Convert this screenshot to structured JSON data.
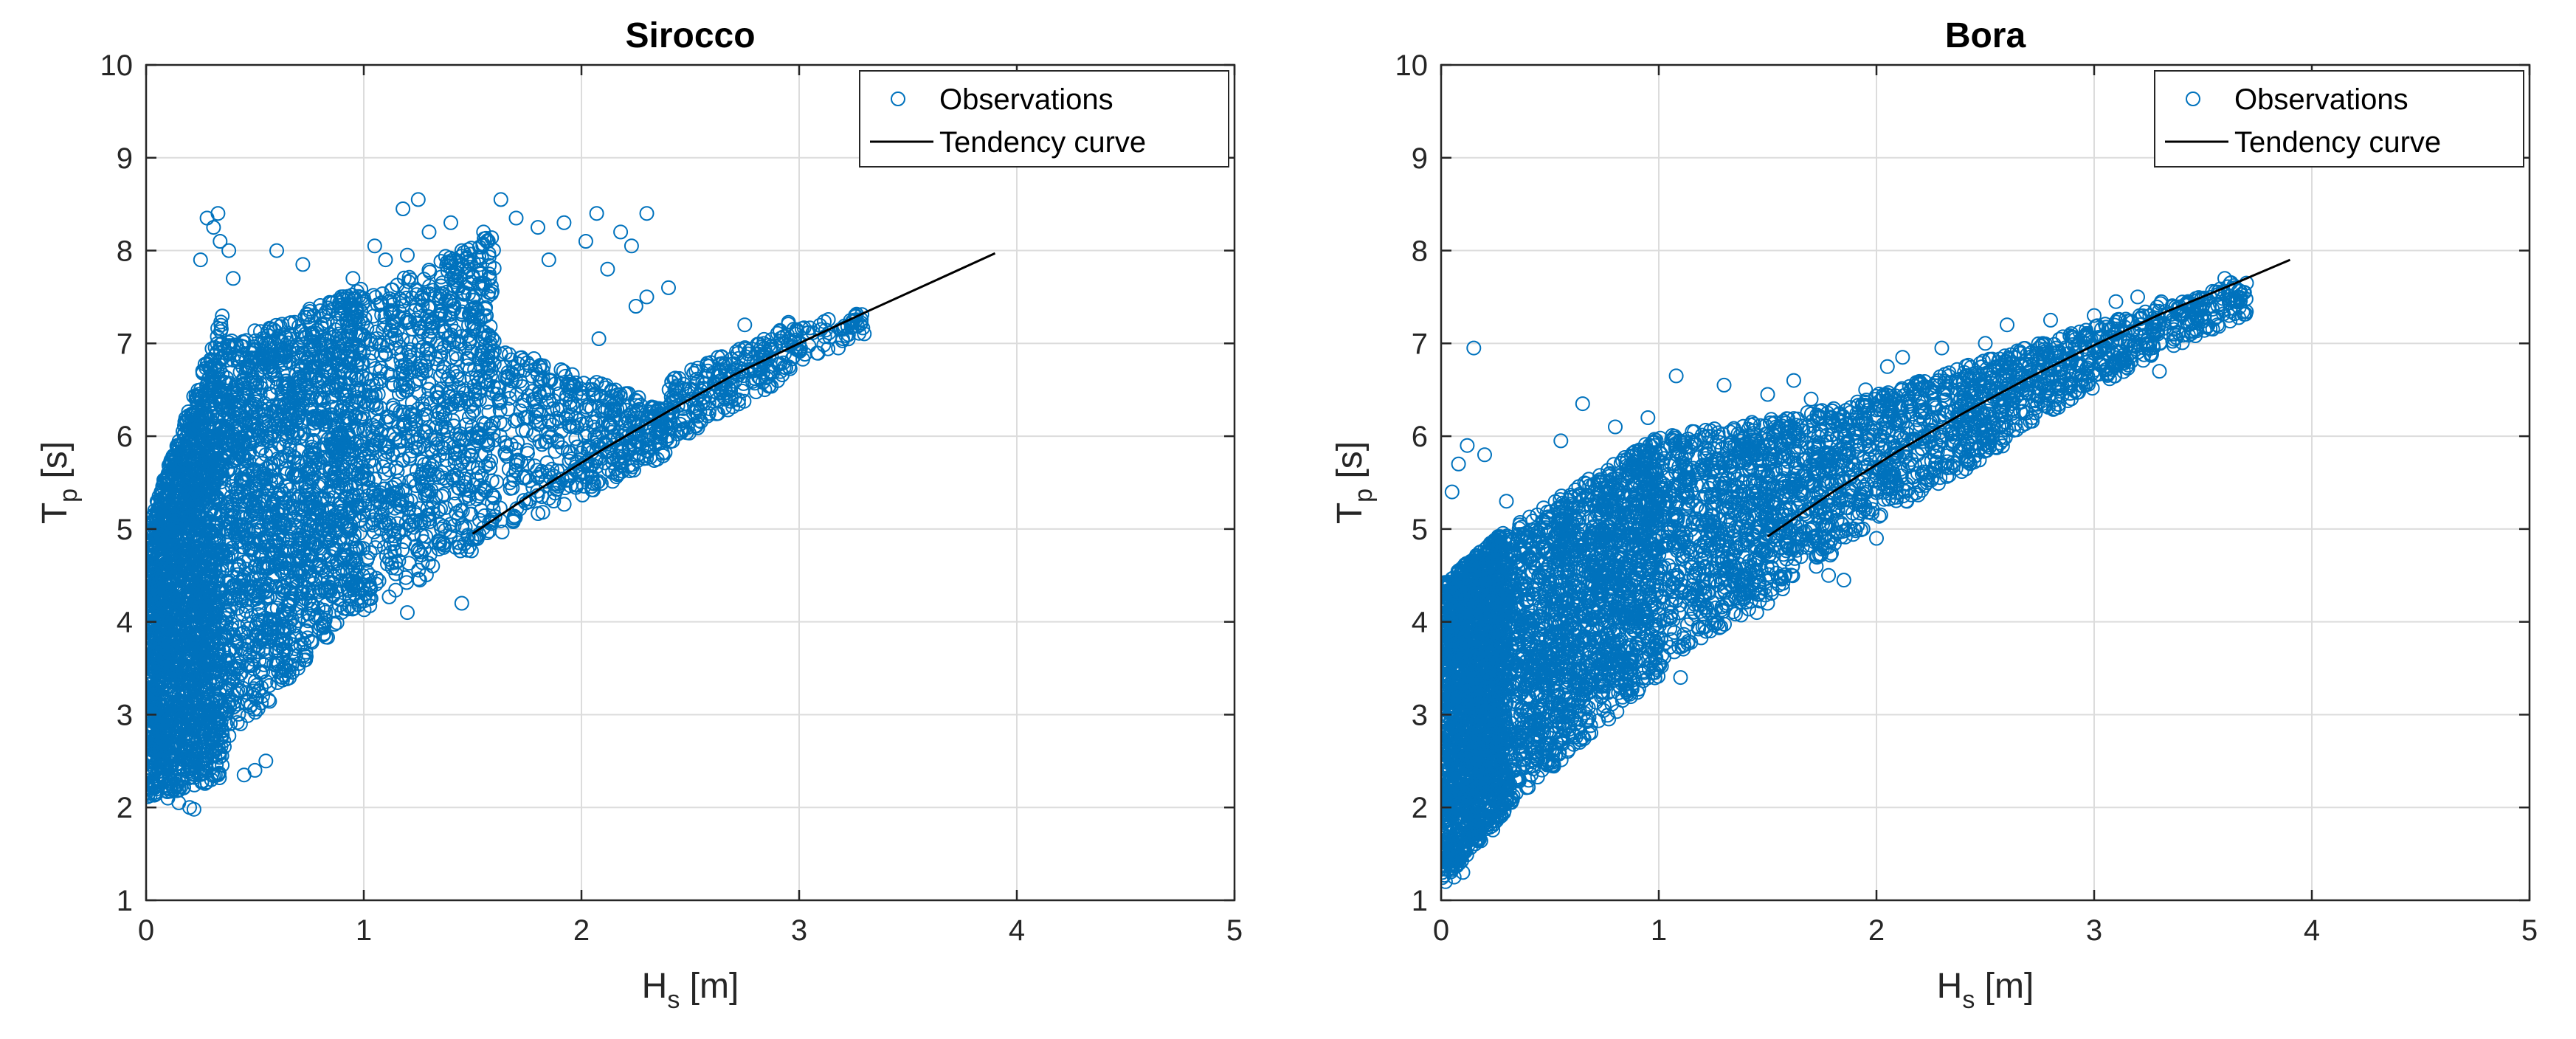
{
  "colors": {
    "observations": "#0072BD",
    "tendency": "#000000",
    "grid": "#dcdcdc",
    "axis": "#262626"
  },
  "chart_data": [
    {
      "type": "scatter",
      "title": "Sirocco",
      "xlabel": {
        "main": "H",
        "sub": "s",
        "unit": " [m]"
      },
      "ylabel": {
        "main": "T",
        "sub": "p",
        "unit": " [s]"
      },
      "xlim": [
        0,
        5
      ],
      "ylim": [
        1,
        10
      ],
      "xticks": [
        "0",
        "1",
        "2",
        "3",
        "4",
        "5"
      ],
      "yticks": [
        "1",
        "2",
        "3",
        "4",
        "5",
        "6",
        "7",
        "8",
        "9",
        "10"
      ],
      "grid": true,
      "legend_position": "top-right",
      "legend": [
        "Observations",
        "Tendency curve"
      ],
      "series": [
        {
          "name": "Observations",
          "marker": "circle-open",
          "cloud": [
            {
              "n": 2200,
              "x": [
                0.0,
                0.35
              ],
              "ylow": [
                2.1,
                2.3
              ],
              "yhigh": [
                5.0,
                7.3
              ]
            },
            {
              "n": 1800,
              "x": [
                0.35,
                1.0
              ],
              "ylow": [
                2.6,
                4.2
              ],
              "yhigh": [
                7.0,
                7.6
              ]
            },
            {
              "n": 900,
              "x": [
                1.0,
                1.6
              ],
              "ylow": [
                4.1,
                4.9
              ],
              "yhigh": [
                7.5,
                8.2
              ]
            },
            {
              "n": 500,
              "x": [
                1.6,
                2.4
              ],
              "ylow": [
                4.9,
                5.8
              ],
              "yhigh": [
                7.0,
                6.3
              ]
            },
            {
              "n": 250,
              "x": [
                2.4,
                3.0
              ],
              "ylow": [
                5.9,
                6.7
              ],
              "yhigh": [
                6.6,
                7.3
              ]
            },
            {
              "n": 50,
              "x": [
                3.0,
                3.3
              ],
              "ylow": [
                6.8,
                7.1
              ],
              "yhigh": [
                7.2,
                7.35
              ]
            }
          ],
          "points": [
            [
              0.28,
              8.35
            ],
            [
              0.31,
              8.25
            ],
            [
              0.34,
              8.1
            ],
            [
              0.38,
              8.0
            ],
            [
              0.33,
              8.4
            ],
            [
              0.25,
              7.9
            ],
            [
              0.6,
              8.0
            ],
            [
              0.72,
              7.85
            ],
            [
              0.95,
              7.7
            ],
            [
              1.05,
              8.05
            ],
            [
              1.25,
              8.55
            ],
            [
              1.18,
              8.45
            ],
            [
              1.3,
              8.2
            ],
            [
              1.4,
              8.3
            ],
            [
              1.55,
              8.2
            ],
            [
              1.63,
              8.55
            ],
            [
              1.7,
              8.35
            ],
            [
              1.8,
              8.25
            ],
            [
              1.92,
              8.3
            ],
            [
              2.02,
              8.1
            ],
            [
              2.07,
              8.4
            ],
            [
              2.18,
              8.2
            ],
            [
              2.23,
              8.05
            ],
            [
              2.3,
              8.4
            ],
            [
              2.12,
              7.8
            ],
            [
              1.85,
              7.9
            ],
            [
              1.45,
              8.0
            ],
            [
              1.2,
              7.95
            ],
            [
              1.1,
              7.9
            ],
            [
              0.4,
              7.7
            ],
            [
              0.2,
              2.0
            ],
            [
              0.22,
              1.98
            ],
            [
              0.3,
              2.3
            ],
            [
              0.45,
              2.35
            ],
            [
              0.5,
              2.4
            ],
            [
              0.55,
              2.5
            ],
            [
              0.05,
              2.2
            ],
            [
              0.1,
              2.1
            ],
            [
              0.15,
              2.05
            ],
            [
              1.45,
              4.2
            ],
            [
              1.2,
              4.1
            ],
            [
              3.25,
              7.25
            ],
            [
              3.2,
              7.05
            ],
            [
              3.18,
              6.95
            ],
            [
              3.1,
              7.15
            ],
            [
              2.75,
              7.2
            ],
            [
              2.3,
              7.5
            ],
            [
              2.08,
              7.05
            ],
            [
              2.25,
              7.4
            ],
            [
              2.4,
              7.6
            ]
          ]
        },
        {
          "name": "Tendency curve",
          "x": [
            1.5,
            1.8,
            2.1,
            2.4,
            2.7,
            3.0,
            3.3,
            3.6,
            3.9
          ],
          "y": [
            4.95,
            5.42,
            5.86,
            6.27,
            6.66,
            7.0,
            7.33,
            7.65,
            7.97
          ]
        }
      ]
    },
    {
      "type": "scatter",
      "title": "Bora",
      "xlabel": {
        "main": "H",
        "sub": "s",
        "unit": " [m]"
      },
      "ylabel": {
        "main": "T",
        "sub": "p",
        "unit": " [s]"
      },
      "xlim": [
        0,
        5
      ],
      "ylim": [
        1,
        10
      ],
      "xticks": [
        "0",
        "1",
        "2",
        "3",
        "4",
        "5"
      ],
      "yticks": [
        "1",
        "2",
        "3",
        "4",
        "5",
        "6",
        "7",
        "8",
        "9",
        "10"
      ],
      "grid": true,
      "legend_position": "top-right",
      "legend": [
        "Observations",
        "Tendency curve"
      ],
      "series": [
        {
          "name": "Observations",
          "marker": "circle-open",
          "cloud": [
            {
              "n": 2200,
              "x": [
                0.0,
                0.3
              ],
              "ylow": [
                1.2,
                1.9
              ],
              "yhigh": [
                4.4,
                5.0
              ]
            },
            {
              "n": 1800,
              "x": [
                0.3,
                1.0
              ],
              "ylow": [
                2.0,
                3.4
              ],
              "yhigh": [
                5.0,
                6.0
              ]
            },
            {
              "n": 1100,
              "x": [
                1.0,
                1.8
              ],
              "ylow": [
                3.5,
                4.7
              ],
              "yhigh": [
                6.0,
                6.3
              ]
            },
            {
              "n": 700,
              "x": [
                1.8,
                2.6
              ],
              "ylow": [
                4.8,
                5.9
              ],
              "yhigh": [
                6.3,
                6.9
              ]
            },
            {
              "n": 400,
              "x": [
                2.6,
                3.3
              ],
              "ylow": [
                6.0,
                6.9
              ],
              "yhigh": [
                6.9,
                7.4
              ]
            },
            {
              "n": 140,
              "x": [
                3.3,
                3.7
              ],
              "ylow": [
                6.9,
                7.3
              ],
              "yhigh": [
                7.45,
                7.7
              ]
            }
          ],
          "points": [
            [
              0.15,
              6.95
            ],
            [
              0.12,
              5.9
            ],
            [
              0.08,
              5.7
            ],
            [
              0.2,
              5.8
            ],
            [
              0.05,
              5.4
            ],
            [
              0.3,
              5.3
            ],
            [
              0.55,
              5.95
            ],
            [
              0.65,
              6.35
            ],
            [
              0.8,
              6.1
            ],
            [
              1.08,
              6.65
            ],
            [
              0.95,
              6.2
            ],
            [
              1.3,
              6.55
            ],
            [
              1.5,
              6.45
            ],
            [
              1.62,
              6.6
            ],
            [
              1.7,
              6.4
            ],
            [
              1.95,
              6.5
            ],
            [
              2.12,
              6.85
            ],
            [
              2.05,
              6.75
            ],
            [
              2.3,
              6.95
            ],
            [
              2.5,
              7.0
            ],
            [
              2.6,
              7.2
            ],
            [
              2.8,
              7.25
            ],
            [
              3.0,
              7.3
            ],
            [
              3.1,
              7.45
            ],
            [
              3.2,
              7.5
            ],
            [
              3.6,
              7.7
            ],
            [
              3.65,
              7.6
            ],
            [
              3.7,
              7.65
            ],
            [
              1.85,
              4.45
            ],
            [
              1.78,
              4.5
            ],
            [
              1.45,
              4.1
            ],
            [
              1.5,
              4.2
            ],
            [
              1.1,
              3.4
            ],
            [
              2.0,
              4.9
            ],
            [
              3.3,
              6.7
            ],
            [
              3.62,
              7.3
            ],
            [
              0.02,
              1.2
            ],
            [
              0.06,
              1.25
            ],
            [
              0.1,
              1.3
            ],
            [
              0.03,
              1.4
            ]
          ]
        },
        {
          "name": "Tendency curve",
          "x": [
            1.5,
            1.8,
            2.1,
            2.4,
            2.7,
            3.0,
            3.3,
            3.6,
            3.9
          ],
          "y": [
            4.92,
            5.4,
            5.84,
            6.25,
            6.63,
            6.98,
            7.31,
            7.6,
            7.9
          ]
        }
      ]
    }
  ]
}
